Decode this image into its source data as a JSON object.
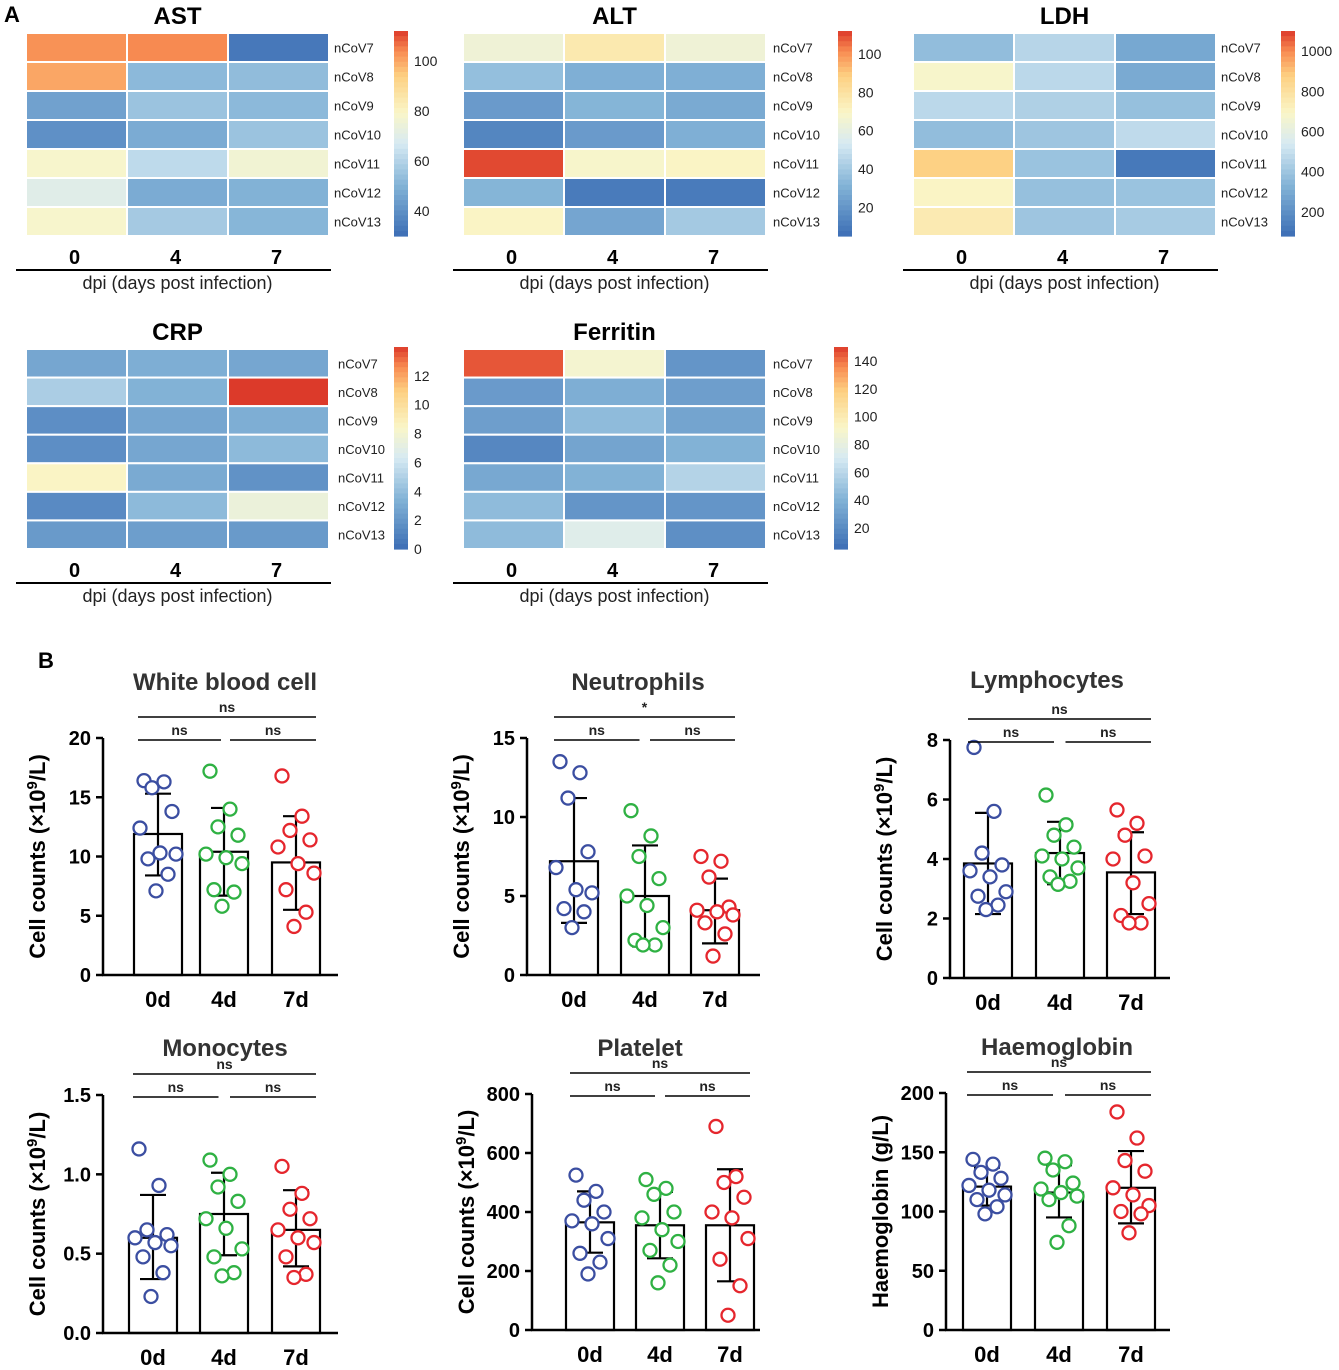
{
  "panels": {
    "a_label": "A",
    "b_label": "B"
  },
  "colors": {
    "low": "#3f6fb7",
    "mid": "#fbf6c4",
    "high": "#dc3a2a"
  },
  "chart_data": [
    {
      "type": "heatmap",
      "title": "AST",
      "categories": [
        "0",
        "4",
        "7"
      ],
      "rows": [
        "nCoV7",
        "nCoV8",
        "nCoV9",
        "nCoV10",
        "nCoV11",
        "nCoV12",
        "nCoV13"
      ],
      "xlabel": "dpi (days post infection)",
      "range": [
        30,
        112
      ],
      "ticks": [
        "40",
        "60",
        "80",
        "100"
      ],
      "values": [
        [
          103,
          104,
          33
        ],
        [
          100,
          52,
          53
        ],
        [
          45,
          55,
          52
        ],
        [
          40,
          48,
          55
        ],
        [
          78,
          62,
          76
        ],
        [
          70,
          48,
          50
        ],
        [
          78,
          57,
          51
        ]
      ]
    },
    {
      "type": "heatmap",
      "title": "ALT",
      "categories": [
        "0",
        "4",
        "7"
      ],
      "rows": [
        "nCoV7",
        "nCoV8",
        "nCoV9",
        "nCoV10",
        "nCoV11",
        "nCoV12",
        "nCoV13"
      ],
      "xlabel": "dpi (days post infection)",
      "range": [
        5,
        112
      ],
      "ticks": [
        "20",
        "40",
        "60",
        "80",
        "100"
      ],
      "values": [
        [
          64,
          76,
          64
        ],
        [
          36,
          30,
          30
        ],
        [
          22,
          32,
          28
        ],
        [
          14,
          22,
          30
        ],
        [
          110,
          68,
          70
        ],
        [
          32,
          10,
          10
        ],
        [
          70,
          26,
          40
        ]
      ]
    },
    {
      "type": "heatmap",
      "title": "LDH",
      "categories": [
        "0",
        "4",
        "7"
      ],
      "rows": [
        "nCoV7",
        "nCoV8",
        "nCoV9",
        "nCoV10",
        "nCoV11",
        "nCoV12",
        "nCoV13"
      ],
      "xlabel": "dpi (days post infection)",
      "range": [
        80,
        1100
      ],
      "ticks": [
        "200",
        "400",
        "600",
        "800",
        "1000"
      ],
      "values": [
        [
          370,
          460,
          290
        ],
        [
          680,
          470,
          300
        ],
        [
          470,
          440,
          380
        ],
        [
          370,
          400,
          480
        ],
        [
          870,
          390,
          120
        ],
        [
          700,
          380,
          390
        ],
        [
          750,
          400,
          420
        ]
      ]
    },
    {
      "type": "heatmap",
      "title": "CRP",
      "categories": [
        "0",
        "4",
        "7"
      ],
      "rows": [
        "nCoV7",
        "nCoV8",
        "nCoV9",
        "nCoV10",
        "nCoV11",
        "nCoV12",
        "nCoV13"
      ],
      "xlabel": "dpi (days post infection)",
      "range": [
        0,
        14
      ],
      "ticks": [
        "0",
        "2",
        "4",
        "6",
        "8",
        "10",
        "12"
      ],
      "values": [
        [
          2.8,
          3.2,
          2.8
        ],
        [
          4.8,
          3.4,
          14
        ],
        [
          1.6,
          2.8,
          3.2
        ],
        [
          1.6,
          2.8,
          3.8
        ],
        [
          8.5,
          3.0,
          1.8
        ],
        [
          1.4,
          3.8,
          7.5
        ],
        [
          2.2,
          2.4,
          2.2
        ]
      ]
    },
    {
      "type": "heatmap",
      "title": "Ferritin",
      "categories": [
        "0",
        "4",
        "7"
      ],
      "rows": [
        "nCoV7",
        "nCoV8",
        "nCoV9",
        "nCoV10",
        "nCoV11",
        "nCoV12",
        "nCoV13"
      ],
      "xlabel": "dpi (days post infection)",
      "range": [
        5,
        150
      ],
      "ticks": [
        "20",
        "40",
        "60",
        "80",
        "100",
        "120",
        "140"
      ],
      "values": [
        [
          145,
          88,
          25
        ],
        [
          28,
          38,
          30
        ],
        [
          30,
          45,
          33
        ],
        [
          18,
          33,
          40
        ],
        [
          35,
          40,
          58
        ],
        [
          45,
          25,
          25
        ],
        [
          45,
          75,
          22
        ]
      ]
    },
    {
      "type": "bar",
      "title": "White blood cell",
      "categories": [
        "0d",
        "4d",
        "7d"
      ],
      "ylabel": "Cell counts (×10^9/L)",
      "ylim": [
        0,
        20
      ],
      "yticks": [
        0,
        5,
        10,
        15,
        20
      ],
      "values": [
        11.9,
        10.4,
        9.5
      ],
      "errors": [
        [
          8.4,
          15.3
        ],
        [
          6.7,
          14.1
        ],
        [
          5.5,
          13.4
        ]
      ],
      "points": [
        [
          16.4,
          16.3,
          15.8,
          13.8,
          12.4,
          10.3,
          10.2,
          9.8,
          8.5,
          7.1
        ],
        [
          17.2,
          14.0,
          12.5,
          11.8,
          10.2,
          9.9,
          9.4,
          7.2,
          7.0,
          5.8
        ],
        [
          16.8,
          13.4,
          12.2,
          11.4,
          10.8,
          9.4,
          8.6,
          7.2,
          5.3,
          4.1
        ]
      ],
      "sig": [
        {
          "from": 0,
          "to": 2,
          "label": "ns",
          "level": 2
        },
        {
          "from": 0,
          "to": 1,
          "label": "ns",
          "level": 1
        },
        {
          "from": 1,
          "to": 2,
          "label": "ns",
          "level": 1
        }
      ]
    },
    {
      "type": "bar",
      "title": "Neutrophils",
      "categories": [
        "0d",
        "4d",
        "7d"
      ],
      "ylabel": "Cell counts (×10^9/L)",
      "ylim": [
        0,
        15
      ],
      "yticks": [
        0,
        5,
        10,
        15
      ],
      "values": [
        7.2,
        5.0,
        4.1
      ],
      "errors": [
        [
          3.3,
          11.2
        ],
        [
          1.8,
          8.2
        ],
        [
          2.0,
          6.1
        ]
      ],
      "points": [
        [
          13.5,
          12.8,
          11.2,
          7.8,
          6.8,
          5.4,
          5.2,
          4.2,
          4.0,
          3.0
        ],
        [
          10.4,
          8.8,
          7.5,
          6.1,
          5.0,
          4.4,
          3.0,
          2.2,
          1.9,
          1.9
        ],
        [
          7.5,
          7.2,
          6.2,
          4.3,
          4.1,
          4.0,
          3.8,
          3.3,
          2.6,
          1.2
        ]
      ],
      "sig": [
        {
          "from": 0,
          "to": 2,
          "label": "*",
          "level": 2
        },
        {
          "from": 0,
          "to": 1,
          "label": "ns",
          "level": 1
        },
        {
          "from": 1,
          "to": 2,
          "label": "ns",
          "level": 1
        }
      ]
    },
    {
      "type": "bar",
      "title": "Lymphocytes",
      "categories": [
        "0d",
        "4d",
        "7d"
      ],
      "ylabel": "Cell counts (×10^9/L)",
      "ylim": [
        0,
        8
      ],
      "yticks": [
        0,
        2,
        4,
        6,
        8
      ],
      "values": [
        3.85,
        4.2,
        3.55
      ],
      "errors": [
        [
          2.15,
          5.55
        ],
        [
          3.15,
          5.25
        ],
        [
          2.15,
          4.9
        ]
      ],
      "points": [
        [
          7.75,
          5.6,
          4.2,
          3.8,
          3.6,
          3.4,
          2.9,
          2.75,
          2.45,
          2.3
        ],
        [
          6.15,
          5.15,
          4.8,
          4.4,
          4.1,
          4.0,
          3.7,
          3.4,
          3.25,
          3.15
        ],
        [
          5.65,
          5.2,
          4.8,
          4.1,
          4.0,
          3.2,
          2.5,
          2.1,
          1.85,
          1.85
        ]
      ],
      "sig": [
        {
          "from": 0,
          "to": 2,
          "label": "ns",
          "level": 2
        },
        {
          "from": 0,
          "to": 1,
          "label": "ns",
          "level": 1
        },
        {
          "from": 1,
          "to": 2,
          "label": "ns",
          "level": 1
        }
      ]
    },
    {
      "type": "bar",
      "title": "Monocytes",
      "categories": [
        "0d",
        "4d",
        "7d"
      ],
      "ylabel": "Cell counts (×10^9/L)",
      "ylim": [
        0,
        1.5
      ],
      "yticks": [
        "0.0",
        "0.5",
        "1.0",
        "1.5"
      ],
      "values": [
        0.6,
        0.75,
        0.65
      ],
      "errors": [
        [
          0.34,
          0.87
        ],
        [
          0.49,
          1.01
        ],
        [
          0.42,
          0.9
        ]
      ],
      "points": [
        [
          1.16,
          0.93,
          0.65,
          0.62,
          0.6,
          0.57,
          0.55,
          0.48,
          0.38,
          0.23
        ],
        [
          1.09,
          1.0,
          0.92,
          0.83,
          0.72,
          0.66,
          0.53,
          0.48,
          0.38,
          0.36
        ],
        [
          1.05,
          0.88,
          0.78,
          0.72,
          0.65,
          0.6,
          0.57,
          0.48,
          0.37,
          0.35
        ]
      ],
      "sig": [
        {
          "from": 0,
          "to": 2,
          "label": "ns",
          "level": 2
        },
        {
          "from": 0,
          "to": 1,
          "label": "ns",
          "level": 1
        },
        {
          "from": 1,
          "to": 2,
          "label": "ns",
          "level": 1
        }
      ]
    },
    {
      "type": "bar",
      "title": "Platelet",
      "categories": [
        "0d",
        "4d",
        "7d"
      ],
      "ylabel": "Cell counts (×10^9/L)",
      "ylim": [
        0,
        800
      ],
      "yticks": [
        0,
        200,
        400,
        600,
        800
      ],
      "values": [
        365,
        355,
        355
      ],
      "errors": [
        [
          262,
          470
        ],
        [
          243,
          468
        ],
        [
          165,
          545
        ]
      ],
      "points": [
        [
          525,
          470,
          440,
          400,
          370,
          360,
          310,
          260,
          230,
          190
        ],
        [
          510,
          480,
          460,
          400,
          380,
          340,
          300,
          270,
          220,
          160
        ],
        [
          690,
          520,
          500,
          450,
          400,
          380,
          310,
          240,
          150,
          50
        ]
      ],
      "sig": [
        {
          "from": 0,
          "to": 2,
          "label": "ns",
          "level": 2
        },
        {
          "from": 0,
          "to": 1,
          "label": "ns",
          "level": 1
        },
        {
          "from": 1,
          "to": 2,
          "label": "ns",
          "level": 1
        }
      ]
    },
    {
      "type": "bar",
      "title": "Haemoglobin",
      "categories": [
        "0d",
        "4d",
        "7d"
      ],
      "ylabel": "Haemoglobin (g/L)",
      "ylim": [
        0,
        200
      ],
      "yticks": [
        0,
        50,
        100,
        150,
        200
      ],
      "values": [
        121,
        116,
        120
      ],
      "errors": [
        [
          105,
          137
        ],
        [
          95,
          139
        ],
        [
          90,
          151
        ]
      ],
      "points": [
        [
          144,
          140,
          133,
          128,
          122,
          118,
          114,
          110,
          104,
          98
        ],
        [
          145,
          142,
          135,
          124,
          119,
          116,
          113,
          110,
          88,
          74
        ],
        [
          184,
          162,
          143,
          134,
          120,
          114,
          105,
          100,
          98,
          82
        ]
      ],
      "sig": [
        {
          "from": 0,
          "to": 2,
          "label": "ns",
          "level": 2
        },
        {
          "from": 0,
          "to": 1,
          "label": "ns",
          "level": 1
        },
        {
          "from": 1,
          "to": 2,
          "label": "ns",
          "level": 1
        }
      ]
    }
  ]
}
